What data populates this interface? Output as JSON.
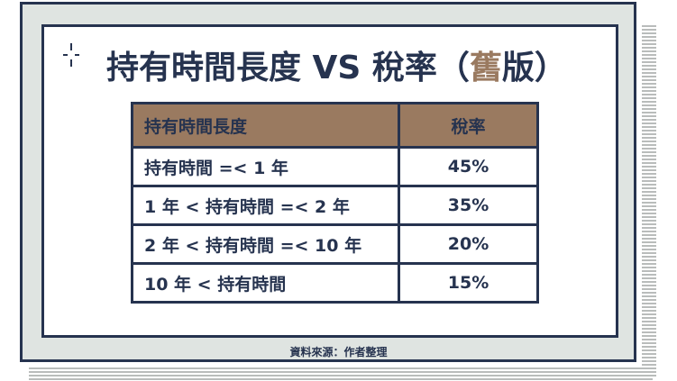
{
  "title": {
    "main": "持有時間長度 VS 稅率（",
    "accent": "舊",
    "suffix": "版）"
  },
  "table": {
    "headers": [
      "持有時間長度",
      "稅率"
    ],
    "rows": [
      [
        "持有時間 =< 1 年",
        "45%"
      ],
      [
        "1 年 < 持有時間 =< 2 年",
        "35%"
      ],
      [
        "2 年 < 持有時間 =< 10 年",
        "20%"
      ],
      [
        "10 年 < 持有時間",
        "15%"
      ]
    ]
  },
  "source": "資料來源：作者整理",
  "colors": {
    "navy": "#26334f",
    "header_brown": "#9a7a60",
    "board_gray": "#dfe4e1"
  },
  "icons": {
    "title_decoration": "sparkle-icon"
  }
}
